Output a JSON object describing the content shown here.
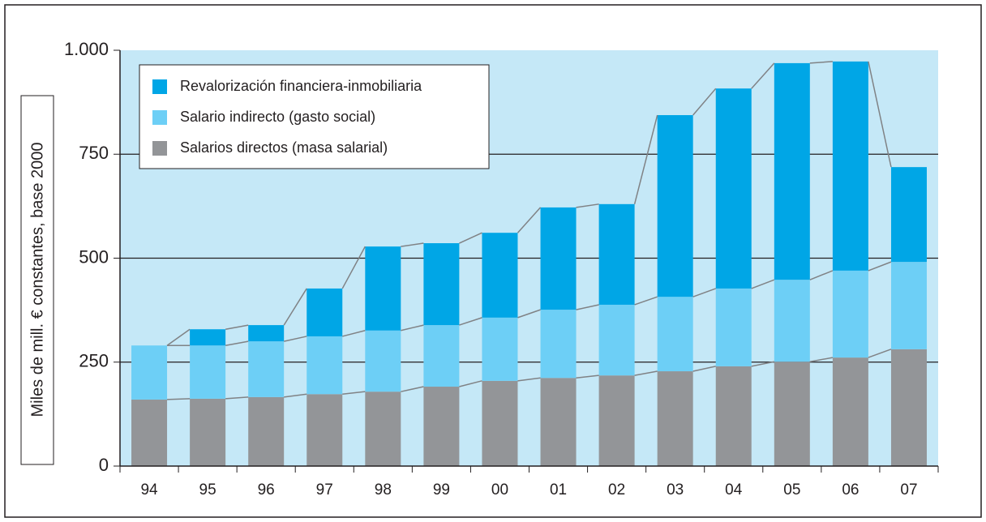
{
  "chart_data": {
    "type": "stacked_bar",
    "y_axis_label": "Miles de mill. € constantes, base 2000",
    "categories": [
      "94",
      "95",
      "96",
      "97",
      "98",
      "99",
      "00",
      "01",
      "02",
      "03",
      "04",
      "05",
      "06",
      "07"
    ],
    "series": [
      {
        "name": "Revalorización financiera-inmobiliaria",
        "color": "#00a6e6",
        "values": [
          0,
          39,
          39,
          115,
          202,
          197,
          204,
          246,
          242,
          437,
          481,
          521,
          503,
          228
        ]
      },
      {
        "name": "Salario indirecto (gasto social)",
        "color": "#6dcff6",
        "values": [
          130,
          128,
          134,
          139,
          147,
          148,
          152,
          164,
          170,
          179,
          187,
          197,
          209,
          210
        ]
      },
      {
        "name": "Salarios directos (masa salarial)",
        "color": "#939598",
        "values": [
          160,
          162,
          166,
          173,
          179,
          191,
          205,
          212,
          218,
          228,
          240,
          251,
          261,
          281
        ]
      }
    ],
    "ylim": [
      0,
      1000
    ],
    "yticks": [
      0,
      250,
      500,
      750,
      {
        "value": 1000,
        "label": "1.000"
      }
    ],
    "grid": true,
    "legend": "upper left"
  }
}
